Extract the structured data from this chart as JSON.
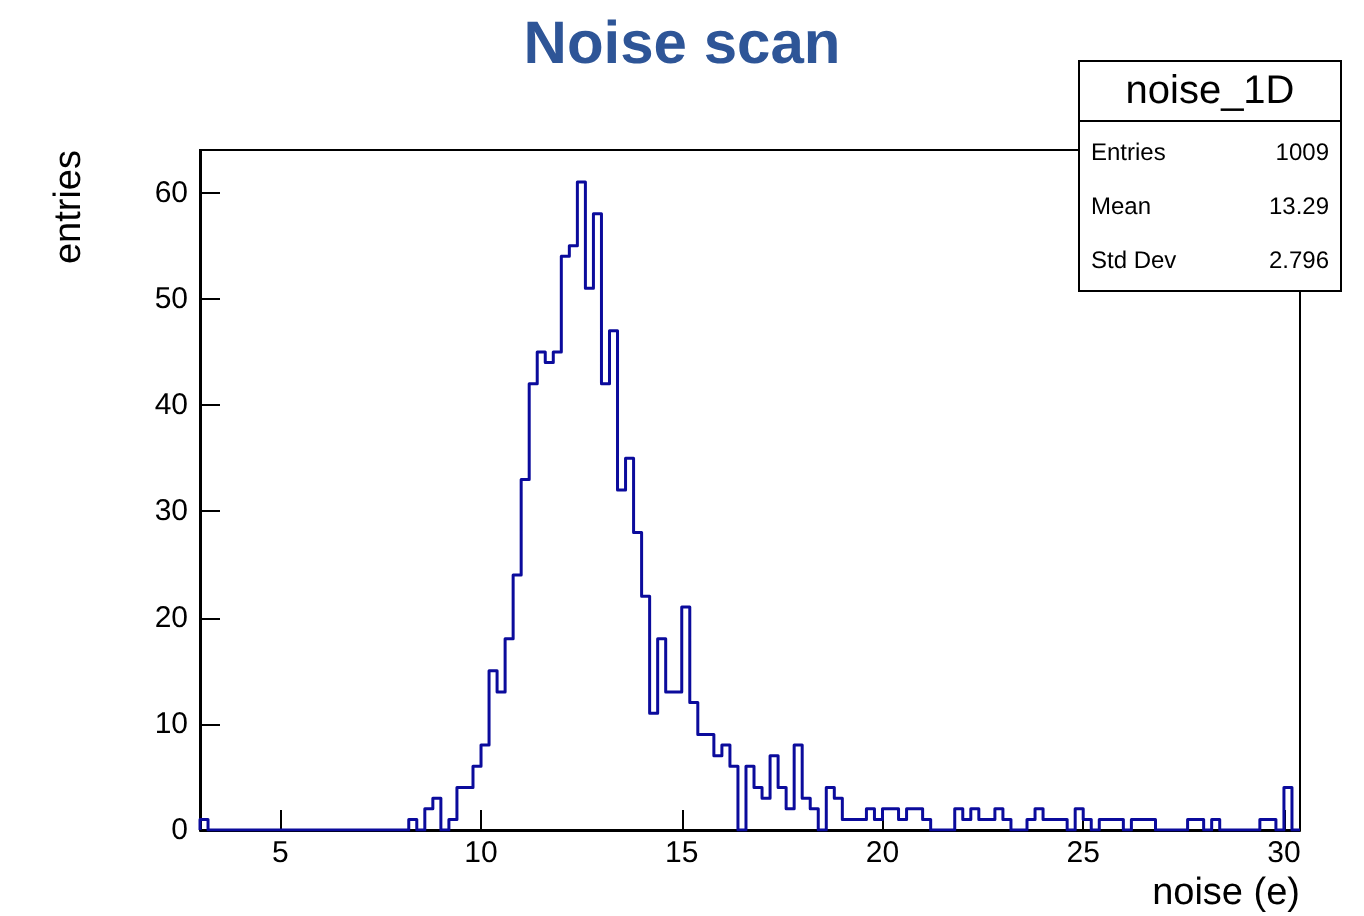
{
  "chart_data": {
    "type": "histogram",
    "title": "Noise scan",
    "xlabel": "noise (e)",
    "ylabel": "entries",
    "color": "#0b0b9c",
    "bins": [
      3,
      3.2,
      3.4,
      3.6,
      3.8,
      4,
      4.2,
      4.4,
      4.6,
      4.8,
      5,
      5.2,
      5.4,
      5.6,
      5.8,
      6,
      6.2,
      6.4,
      6.6,
      6.8,
      7,
      7.2,
      7.4,
      7.6,
      7.8,
      8,
      8.2,
      8.4,
      8.6,
      8.8,
      9,
      9.2,
      9.4,
      9.6,
      9.8,
      10,
      10.2,
      10.4,
      10.6,
      10.8,
      11,
      11.2,
      11.4,
      11.6,
      11.8,
      12,
      12.2,
      12.4,
      12.6,
      12.8,
      13,
      13.2,
      13.4,
      13.6,
      13.8,
      14,
      14.2,
      14.4,
      14.6,
      14.8,
      15,
      15.2,
      15.4,
      15.6,
      15.8,
      16,
      16.2,
      16.4,
      16.6,
      16.8,
      17,
      17.2,
      17.4,
      17.6,
      17.8,
      18,
      18.2,
      18.4,
      18.6,
      18.8,
      19,
      19.2,
      19.4,
      19.6,
      19.8,
      20,
      20.2,
      20.4,
      20.6,
      20.8,
      21,
      21.2,
      21.4,
      21.6,
      21.8,
      22,
      22.2,
      22.4,
      22.6,
      22.8,
      23,
      23.2,
      23.4,
      23.6,
      23.8,
      24,
      24.2,
      24.4,
      24.6,
      24.8,
      25,
      25.2,
      25.4,
      25.6,
      25.8,
      26,
      26.2,
      26.4,
      26.6,
      26.8,
      27,
      27.2,
      27.4,
      27.6,
      27.8,
      28,
      28.2,
      28.4,
      28.6,
      28.8,
      29,
      29.2,
      29.4,
      29.6,
      29.8,
      30,
      30.2,
      30.4
    ],
    "values": [
      1,
      0,
      0,
      0,
      0,
      0,
      0,
      0,
      0,
      0,
      0,
      0,
      0,
      0,
      0,
      0,
      0,
      0,
      0,
      0,
      0,
      0,
      0,
      0,
      0,
      0,
      1,
      0,
      2,
      3,
      0,
      1,
      4,
      4,
      6,
      8,
      15,
      13,
      18,
      24,
      33,
      42,
      45,
      44,
      45,
      54,
      55,
      61,
      51,
      58,
      42,
      47,
      32,
      35,
      28,
      22,
      11,
      18,
      13,
      13,
      21,
      12,
      9,
      9,
      7,
      8,
      6,
      0,
      6,
      4,
      3,
      7,
      4,
      2,
      8,
      3,
      2,
      0,
      4,
      3,
      1,
      1,
      1,
      2,
      1,
      2,
      2,
      1,
      2,
      2,
      1,
      0,
      0,
      0,
      2,
      1,
      2,
      1,
      1,
      2,
      1,
      0,
      0,
      1,
      2,
      1,
      1,
      1,
      0,
      2,
      1,
      0,
      1,
      1,
      1,
      0,
      1,
      1,
      1,
      0,
      0,
      0,
      0,
      1,
      1,
      0,
      1,
      0,
      0,
      0,
      0,
      0,
      1,
      1,
      0,
      4,
      0
    ],
    "xlim": [
      3,
      30.4
    ],
    "xticks": [
      5,
      10,
      15,
      20,
      25,
      30
    ],
    "ylim": [
      0,
      64
    ],
    "yticks": [
      0,
      10,
      20,
      30,
      40,
      50,
      60
    ],
    "annotations": [
      "noise_1D",
      "Entries",
      "1009",
      "Mean",
      "13.29",
      "Std Dev",
      "2.796"
    ]
  }
}
